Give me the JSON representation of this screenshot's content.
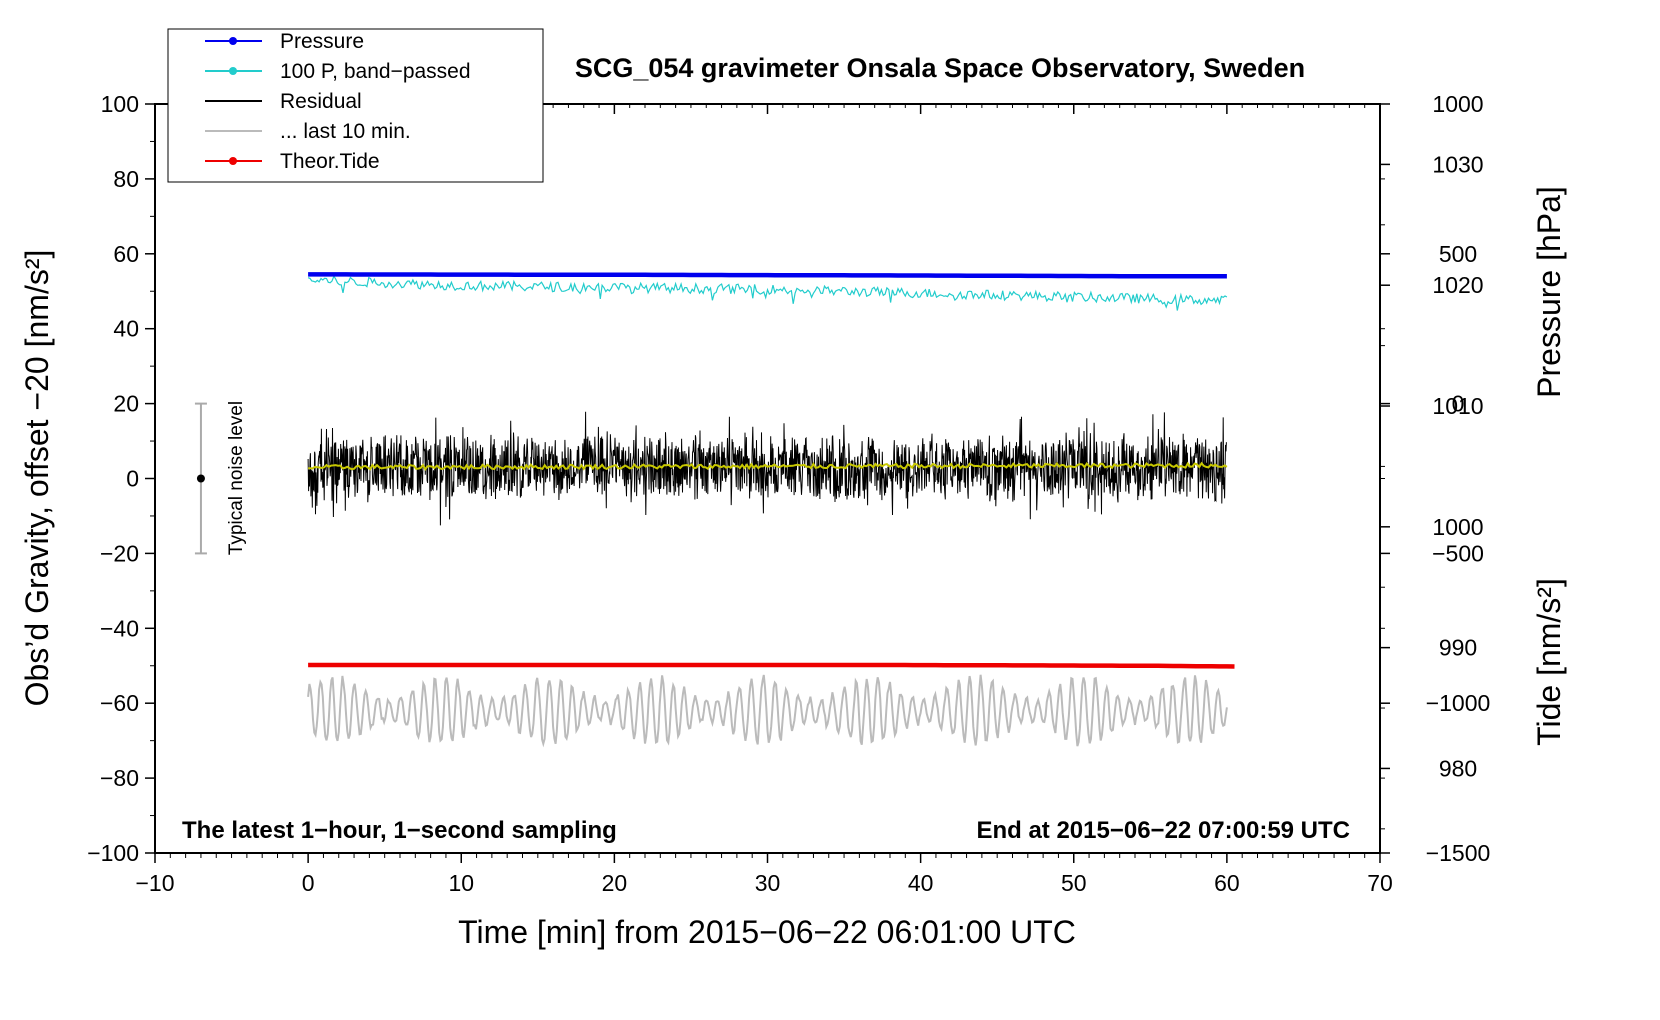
{
  "chart_data": {
    "type": "line",
    "title": "SCG_054 gravimeter Onsala Space Observatory, Sweden",
    "xlabel": "Time [min] from 2015−06−22 06:01:00 UTC",
    "ylabel_left": "Obs’d Gravity, offset −20 [nm/s²]",
    "ylabel_right_pressure": "Pressure [hPa]",
    "ylabel_right_tide": "Tide [nm/s²]",
    "xlim": [
      -10,
      70
    ],
    "ylim_left": [
      -100,
      100
    ],
    "pressure_range": [
      973,
      1035
    ],
    "tide_range": [
      -1500,
      1000
    ],
    "grid": false,
    "legend_position": "top-left",
    "x_ticks": [
      -10,
      0,
      10,
      20,
      30,
      40,
      50,
      60,
      70
    ],
    "x_tick_labels": [
      "−10",
      "0",
      "10",
      "20",
      "30",
      "40",
      "50",
      "60",
      "70"
    ],
    "y_left_ticks": [
      100,
      80,
      60,
      40,
      20,
      0,
      -20,
      -40,
      -60,
      -80,
      -100
    ],
    "y_left_tick_labels": [
      "100",
      "80",
      "60",
      "40",
      "20",
      "0",
      "−20",
      "−40",
      "−60",
      "−80",
      "−100"
    ],
    "pressure_ticks": [
      1030,
      1020,
      1010,
      1000,
      990,
      980
    ],
    "pressure_tick_labels": [
      "1030",
      "1020",
      "1010",
      "1000",
      "990",
      "980"
    ],
    "tide_ticks": [
      1000,
      500,
      0,
      -500,
      -1000,
      -1500
    ],
    "tide_tick_labels": [
      "1000",
      "500",
      "0",
      "−500",
      "−1000",
      "−1500"
    ],
    "annotations": {
      "left": "The latest 1−hour, 1−second sampling",
      "right": "End at 2015−06−22 07:00:59 UTC",
      "noise": "Typical noise level"
    },
    "noise_bar": {
      "x": -7,
      "center": 0,
      "half_range": 20
    },
    "legend": [
      {
        "label": "Pressure",
        "color": "#0000ee",
        "marker": true
      },
      {
        "label": "100 P, band−passed",
        "color": "#22cccc",
        "marker": true
      },
      {
        "label": "Residual",
        "color": "#000000",
        "marker": false
      },
      {
        "label": "... last 10 min.",
        "color": "#bbbbbb",
        "marker": false
      },
      {
        "label": "Theor.Tide",
        "color": "#ee0000",
        "marker": true
      }
    ],
    "series": [
      {
        "name": "Pressure",
        "color": "#0000ee",
        "x": [
          0,
          20,
          40,
          55,
          60
        ],
        "y": [
          54.5,
          54.4,
          54.2,
          54.0,
          54.0
        ]
      },
      {
        "name": "100 P, band−passed",
        "color": "#22cccc",
        "x": [
          0,
          10,
          20,
          30,
          40,
          50,
          60
        ],
        "y": [
          53,
          51.5,
          51,
          50.5,
          49.5,
          48.5,
          47.5
        ]
      },
      {
        "name": "Residual",
        "color": "#000000",
        "x": [
          0,
          60
        ],
        "y": [
          3,
          3
        ]
      },
      {
        "name": "Residual smoothed",
        "color": "#c8c800",
        "x": [
          0,
          60
        ],
        "y": [
          3,
          3.5
        ]
      },
      {
        "name": "... last 10 min.",
        "color": "#bbbbbb",
        "x": [
          0,
          60
        ],
        "y": [
          -62,
          -62
        ]
      },
      {
        "name": "Theor.Tide",
        "color": "#ee0000",
        "x": [
          0,
          38,
          55,
          60.5
        ],
        "y": [
          -49.8,
          -49.8,
          -50.0,
          -50.2
        ]
      }
    ]
  }
}
